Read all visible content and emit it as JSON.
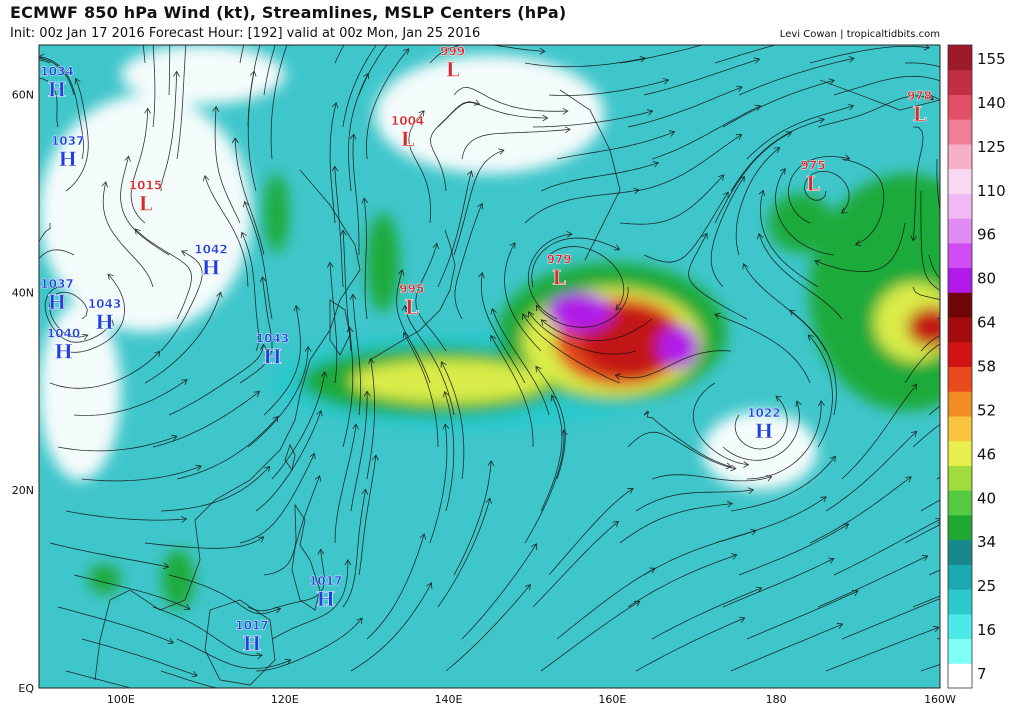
{
  "header": {
    "title": "ECMWF 850 hPa Wind (kt), Streamlines, MSLP Centers (hPa)",
    "subtitle": "Init: 00z Jan 17 2016   Forecast Hour: [192]   valid at 00z Mon, Jan 25 2016",
    "credit": "Levi Cowan | tropicaltidbits.com"
  },
  "map": {
    "lat_range": [
      0,
      65
    ],
    "lon_range": [
      90,
      200
    ],
    "lat_labels": [
      {
        "lat": 60,
        "text": "60N"
      },
      {
        "lat": 40,
        "text": "40N"
      },
      {
        "lat": 20,
        "text": "20N"
      },
      {
        "lat": 0,
        "text": "EQ"
      }
    ],
    "lon_labels": [
      {
        "lon": 100,
        "text": "100E"
      },
      {
        "lon": 120,
        "text": "120E"
      },
      {
        "lon": 140,
        "text": "140E"
      },
      {
        "lon": 160,
        "text": "160E"
      },
      {
        "lon": 180,
        "text": "180"
      },
      {
        "lon": 200,
        "text": "160W"
      }
    ],
    "pressure_centers": [
      {
        "type": "H",
        "value": "1034",
        "lat": 60.5,
        "lon": 90.5
      },
      {
        "type": "H",
        "value": "1037",
        "lat": 53.5,
        "lon": 93.5
      },
      {
        "type": "L",
        "value": "1015",
        "lat": 49.0,
        "lon": 103.0
      },
      {
        "type": "H",
        "value": "1042",
        "lat": 42.5,
        "lon": 111.0
      },
      {
        "type": "H",
        "value": "1037",
        "lat": 39.0,
        "lon": 92.0
      },
      {
        "type": "H",
        "value": "1043",
        "lat": 37.0,
        "lon": 98.0
      },
      {
        "type": "H",
        "value": "1040",
        "lat": 34.0,
        "lon": 93.0
      },
      {
        "type": "H",
        "value": "1043",
        "lat": 33.5,
        "lon": 118.5
      },
      {
        "type": "L",
        "value": "999",
        "lat": 62.5,
        "lon": 140.5
      },
      {
        "type": "L",
        "value": "1004",
        "lat": 55.5,
        "lon": 135.0
      },
      {
        "type": "L",
        "value": "995",
        "lat": 38.5,
        "lon": 135.5
      },
      {
        "type": "L",
        "value": "979",
        "lat": 41.5,
        "lon": 153.5
      },
      {
        "type": "L",
        "value": "975",
        "lat": 51.0,
        "lon": 184.5
      },
      {
        "type": "L",
        "value": "978",
        "lat": 58.0,
        "lon": 197.5
      },
      {
        "type": "H",
        "value": "1022",
        "lat": 26.0,
        "lon": 178.5
      },
      {
        "type": "H",
        "value": "1017",
        "lat": 9.0,
        "lon": 125.0
      },
      {
        "type": "H",
        "value": "1017",
        "lat": 4.5,
        "lon": 116.0
      }
    ],
    "wind_regions": [
      {
        "level": 20,
        "lat": 31,
        "lon": 142,
        "rx": 24,
        "ry": 5
      },
      {
        "level": 30,
        "lat": 36,
        "lon": 160,
        "rx": 14,
        "ry": 7
      },
      {
        "level": 30,
        "lat": 31,
        "lon": 138,
        "rx": 16,
        "ry": 3.5
      },
      {
        "level": 44,
        "lat": 35,
        "lon": 160,
        "rx": 11,
        "ry": 5.5
      },
      {
        "level": 44,
        "lat": 31,
        "lon": 140,
        "rx": 12,
        "ry": 2.2
      },
      {
        "level": 52,
        "lat": 35,
        "lon": 161,
        "rx": 8,
        "ry": 4.5
      },
      {
        "level": 58,
        "lat": 35,
        "lon": 162,
        "rx": 6,
        "ry": 3.5
      },
      {
        "level": 80,
        "lat": 38,
        "lon": 156,
        "rx": 4,
        "ry": 2
      },
      {
        "level": 80,
        "lat": 34.5,
        "lon": 168,
        "rx": 2.5,
        "ry": 2.2
      },
      {
        "level": 30,
        "lat": 40,
        "lon": 196,
        "rx": 12,
        "ry": 12
      },
      {
        "level": 44,
        "lat": 37,
        "lon": 197,
        "rx": 5,
        "ry": 4
      },
      {
        "level": 58,
        "lat": 36.5,
        "lon": 199,
        "rx": 3,
        "ry": 2
      },
      {
        "level": 30,
        "lat": 47,
        "lon": 183,
        "rx": 4,
        "ry": 3
      },
      {
        "level": 30,
        "lat": 11,
        "lon": 107,
        "rx": 2,
        "ry": 3
      },
      {
        "level": 30,
        "lat": 11,
        "lon": 98,
        "rx": 2,
        "ry": 1.5
      },
      {
        "level": 30,
        "lat": 43,
        "lon": 132,
        "rx": 2,
        "ry": 5
      },
      {
        "level": 30,
        "lat": 48,
        "lon": 119,
        "rx": 1.5,
        "ry": 4
      }
    ],
    "calm_regions": [
      {
        "lat": 58,
        "lon": 145,
        "rx": 14,
        "ry": 6
      },
      {
        "lat": 48,
        "lon": 103,
        "rx": 13,
        "ry": 12
      },
      {
        "lat": 30,
        "lon": 95,
        "rx": 5,
        "ry": 9
      },
      {
        "lat": 24,
        "lon": 178,
        "rx": 7,
        "ry": 4
      },
      {
        "lat": 62,
        "lon": 110,
        "rx": 10,
        "ry": 3
      }
    ]
  },
  "colorbar": {
    "labels": [
      "155",
      "140",
      "125",
      "110",
      "96",
      "80",
      "64",
      "58",
      "52",
      "46",
      "40",
      "34",
      "25",
      "16",
      "7"
    ],
    "colors": [
      "#ffffff",
      "#7ffff5",
      "#4de8e8",
      "#2cc8cc",
      "#1aa8b2",
      "#18888f",
      "#1ea831",
      "#55c940",
      "#9fdc3f",
      "#e7ef4a",
      "#f6c43e",
      "#f28a26",
      "#e84a1c",
      "#d11313",
      "#a30c0c",
      "#6e0606",
      "#b319ea",
      "#cf4df3",
      "#e08af3",
      "#f0b9f5",
      "#f8d8f2",
      "#f7b0c6",
      "#ef7f98",
      "#e24f68",
      "#c22d44",
      "#9c1a2a"
    ]
  }
}
